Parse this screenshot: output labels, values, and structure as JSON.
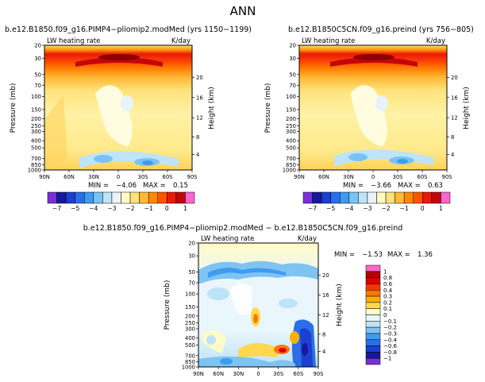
{
  "page": {
    "title": "ANN"
  },
  "chart_data": [
    {
      "type": "heatmap",
      "title": "b.e12.B1850.f09_g16.PIMP4−pliomip2.modMed (yrs 1150−1199)",
      "variable": "LW heating rate",
      "units": "K/day",
      "ylabel": "Pressure (mb)",
      "ylabel_right": "Height (km)",
      "xticks": [
        "90N",
        "60N",
        "30N",
        "0",
        "30S",
        "60S",
        "90S"
      ],
      "yticks": [
        "20",
        "30",
        "50",
        "70",
        "100",
        "150",
        "200",
        "250",
        "300",
        "400",
        "500",
        "700",
        "850",
        "1000"
      ],
      "yticks_right": [
        "20",
        "16",
        "12",
        "8",
        "4"
      ],
      "stats": {
        "min_label": "MIN =",
        "min": "−4.06",
        "max_label": "MAX =",
        "max": "0.15"
      }
    },
    {
      "type": "heatmap",
      "title": "b.e12.B1850C5CN.f09_g16.preind (yrs 756−805)",
      "variable": "LW heating rate",
      "units": "K/day",
      "ylabel": "Pressure (mb)",
      "ylabel_right": "Height (km)",
      "xticks": [
        "90N",
        "60N",
        "30N",
        "0",
        "30S",
        "60S",
        "90S"
      ],
      "yticks": [
        "20",
        "30",
        "50",
        "70",
        "100",
        "150",
        "200",
        "250",
        "300",
        "400",
        "500",
        "700",
        "850",
        "1000"
      ],
      "yticks_right": [
        "20",
        "16",
        "12",
        "8",
        "4"
      ],
      "stats": {
        "min_label": "MIN =",
        "min": "−3.66",
        "max_label": "MAX =",
        "max": "0.63"
      }
    },
    {
      "type": "heatmap",
      "title": "b.e12.B1850.f09_g16.PIMP4−pliomip2.modMed − b.e12.B1850C5CN.f09_g16.preind",
      "variable": "LW heating rate",
      "units": "K/day",
      "ylabel": "Pressure (mb)",
      "ylabel_right": "Height (km)",
      "xticks": [
        "90N",
        "60N",
        "30N",
        "0",
        "30S",
        "60S",
        "90S"
      ],
      "yticks": [
        "20",
        "30",
        "50",
        "70",
        "100",
        "150",
        "200",
        "250",
        "300",
        "400",
        "500",
        "700",
        "850",
        "1000"
      ],
      "yticks_right": [
        "20",
        "16",
        "12",
        "8",
        "4"
      ],
      "stats": {
        "min_label": "MIN =",
        "min": "−1.53",
        "max_label": "MAX =",
        "max": "1.36"
      }
    }
  ],
  "colorbar_top": {
    "labels": [
      "−7",
      "−5",
      "−4",
      "−3",
      "−2",
      "−1",
      "0",
      "1"
    ],
    "colors": [
      "#7a2fd6",
      "#141a9c",
      "#1d3fd1",
      "#2a6ee8",
      "#3f9bf0",
      "#79c3f4",
      "#bde4f7",
      "#e8f4fa",
      "#fffac4",
      "#ffe27a",
      "#ffb936",
      "#ff8a00",
      "#ff5500",
      "#e81a0a",
      "#c4060b",
      "#ff66cc"
    ]
  },
  "colorbar_diff": {
    "labels": [
      "1",
      "0.8",
      "0.6",
      "0.4",
      "0.3",
      "0.2",
      "0.1",
      "0",
      "−0.1",
      "−0.2",
      "−0.3",
      "−0.4",
      "−0.6",
      "−0.8",
      "−1"
    ],
    "colors": [
      "#ff66cc",
      "#b30000",
      "#dd0000",
      "#ff3300",
      "#ff7700",
      "#ffb000",
      "#ffd84d",
      "#fffbc8",
      "#e9f6fc",
      "#bde3f6",
      "#7fc3f2",
      "#3f9bf0",
      "#2a6ee8",
      "#1d3fd1",
      "#141a9c",
      "#7a2fd6"
    ]
  }
}
